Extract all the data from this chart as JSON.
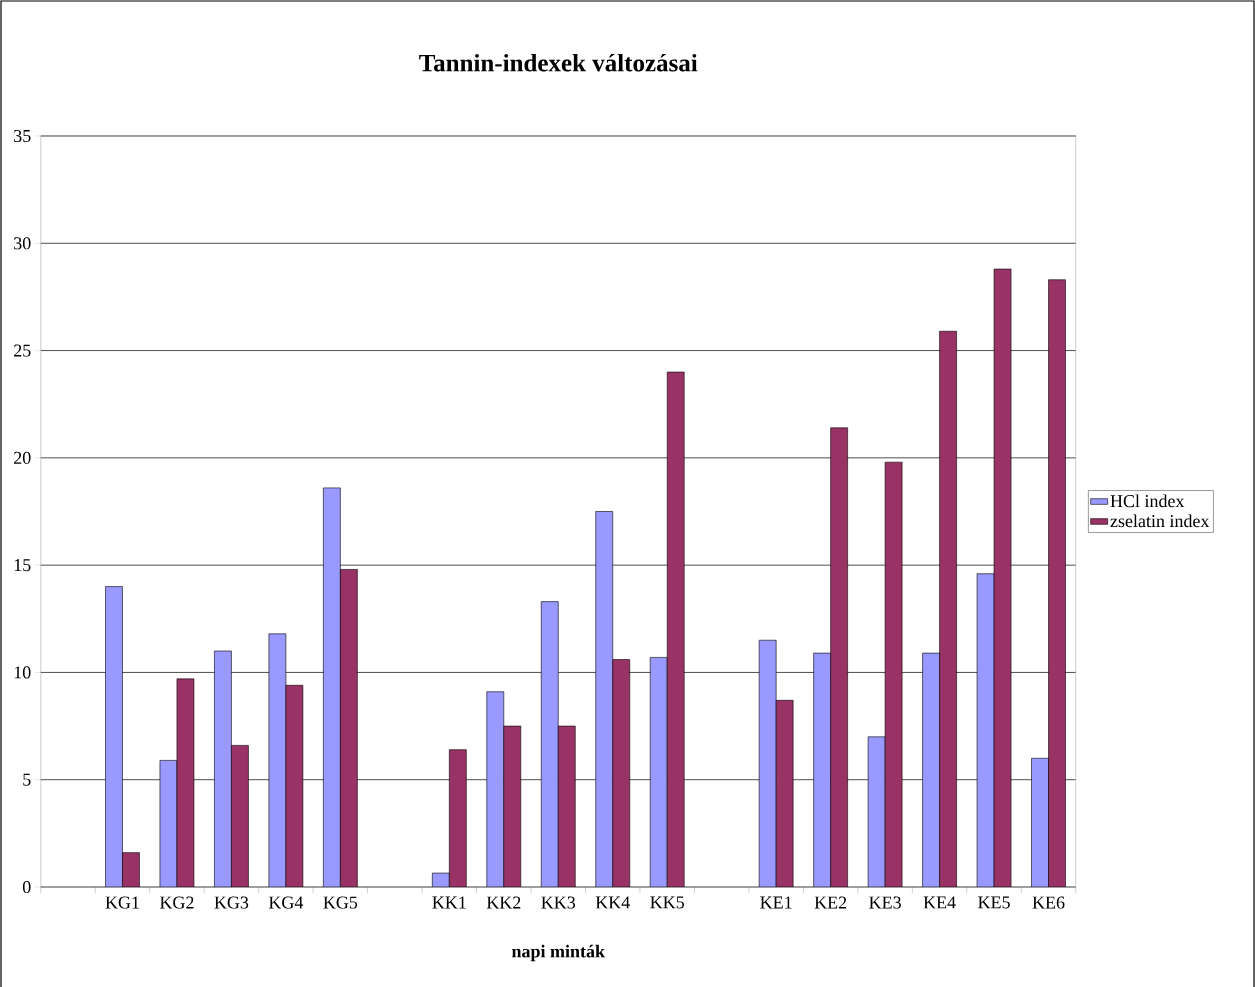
{
  "chart_data": {
    "type": "bar",
    "title": "Tannin-indexek változásai",
    "xlabel": "napi minták",
    "categories": [
      null,
      "KG1",
      "KG2",
      "KG3",
      "KG4",
      "KG5",
      null,
      "KK1",
      "KK2",
      "KK3",
      "KK4",
      "KK5",
      null,
      "KE1",
      "KE2",
      "KE3",
      "KE4",
      "KE5",
      "KE6"
    ],
    "series": [
      {
        "name": "HCl index",
        "color": "#9999ff",
        "values": [
          null,
          14.0,
          5.9,
          11.0,
          11.8,
          18.6,
          null,
          0.65,
          9.1,
          13.3,
          17.5,
          10.7,
          null,
          11.5,
          10.9,
          7.0,
          10.9,
          14.6,
          6.0
        ]
      },
      {
        "name": "zselatin index",
        "color": "#993366",
        "values": [
          null,
          1.6,
          9.7,
          6.6,
          9.4,
          14.8,
          null,
          6.4,
          7.5,
          7.5,
          10.6,
          24.0,
          null,
          8.7,
          21.4,
          19.8,
          25.9,
          28.8,
          28.3
        ]
      }
    ],
    "ylim": [
      0,
      35
    ],
    "yticks": [
      0,
      5,
      10,
      15,
      20,
      25,
      30,
      35
    ],
    "grid": "y",
    "legend": "right"
  }
}
